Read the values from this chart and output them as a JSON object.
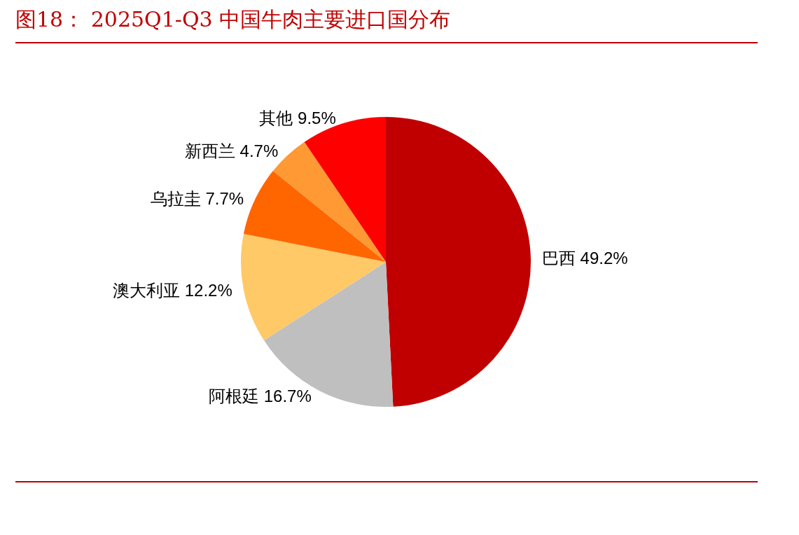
{
  "chart_data": {
    "type": "pie",
    "title": "图18： 2025Q1-Q3 中国牛肉主要进口国分布",
    "categories": [
      "巴西",
      "阿根廷",
      "澳大利亚",
      "乌拉圭",
      "新西兰",
      "其他"
    ],
    "values": [
      49.2,
      16.7,
      12.2,
      7.7,
      4.7,
      9.5
    ],
    "value_labels": [
      "49.2%",
      "16.7%",
      "12.2%",
      "7.7%",
      "4.7%",
      "9.5%"
    ],
    "colors": [
      "#c00000",
      "#bfbfbf",
      "#ffc967",
      "#ff6600",
      "#ff9933",
      "#ff0000"
    ],
    "legend": false
  }
}
